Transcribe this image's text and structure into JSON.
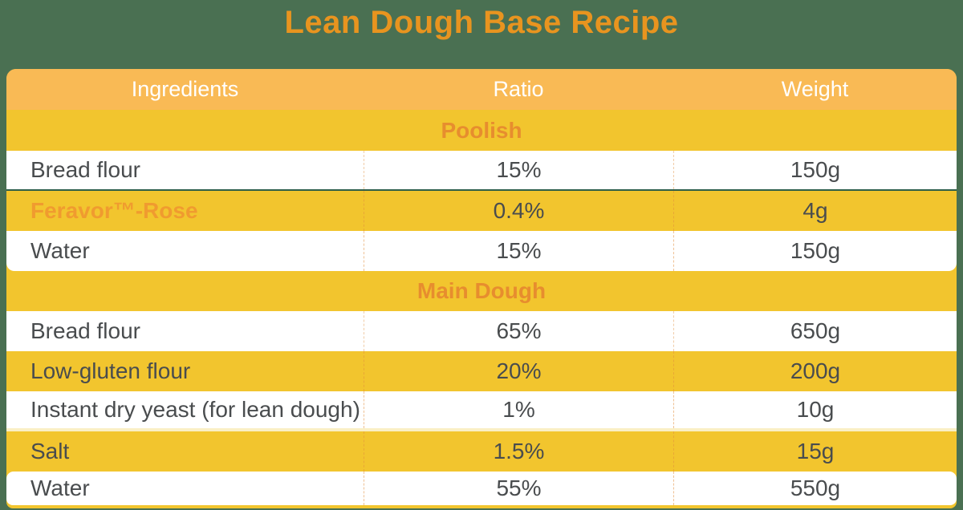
{
  "page": {
    "title": "Lean Dough Base Recipe",
    "background_color": "#4A7052",
    "title_color": "#E8941F"
  },
  "table": {
    "columns": [
      {
        "label": "Ingredients"
      },
      {
        "label": "Ratio"
      },
      {
        "label": "Weight"
      }
    ],
    "colors": {
      "header_bg": "#F9BA55",
      "header_text": "#FFFFFF",
      "accent_yellow": "#F2C52E",
      "section_text": "#E78D2E",
      "brand_text": "#F09B2F",
      "body_text": "#494C4E"
    },
    "sections": [
      {
        "title": "Poolish",
        "rows": [
          {
            "ingredient": "Bread flour",
            "ratio": "15%",
            "weight": "150g"
          },
          {
            "ingredient": "Feravor™-Rose",
            "ratio": "0.4%",
            "weight": "4g",
            "highlight": true
          },
          {
            "ingredient": "Water",
            "ratio": "15%",
            "weight": "150g"
          }
        ]
      },
      {
        "title": "Main Dough",
        "rows": [
          {
            "ingredient": "Bread flour",
            "ratio": "65%",
            "weight": "650g"
          },
          {
            "ingredient": "Low-gluten flour",
            "ratio": "20%",
            "weight": "200g"
          },
          {
            "ingredient": "Instant dry yeast (for lean dough)",
            "ratio": "1%",
            "weight": "10g"
          },
          {
            "ingredient": "Salt",
            "ratio": "1.5%",
            "weight": "15g"
          },
          {
            "ingredient": "Water",
            "ratio": "55%",
            "weight": "550g"
          }
        ]
      }
    ]
  }
}
